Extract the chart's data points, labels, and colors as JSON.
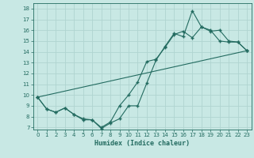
{
  "title": "",
  "xlabel": "Humidex (Indice chaleur)",
  "xlim": [
    -0.5,
    23.5
  ],
  "ylim": [
    6.8,
    18.5
  ],
  "yticks": [
    7,
    8,
    9,
    10,
    11,
    12,
    13,
    14,
    15,
    16,
    17,
    18
  ],
  "xticks": [
    0,
    1,
    2,
    3,
    4,
    5,
    6,
    7,
    8,
    9,
    10,
    11,
    12,
    13,
    14,
    15,
    16,
    17,
    18,
    19,
    20,
    21,
    22,
    23
  ],
  "bg_color": "#c8e8e4",
  "line_color": "#236b60",
  "grid_color": "#b0d4d0",
  "line1_x": [
    0,
    1,
    2,
    3,
    4,
    5,
    6,
    7,
    8,
    9,
    10,
    11,
    12,
    13,
    14,
    15,
    16,
    17,
    18,
    19,
    20,
    21,
    22,
    23
  ],
  "line1_y": [
    9.8,
    8.7,
    8.4,
    8.8,
    8.2,
    7.7,
    7.7,
    6.9,
    7.4,
    7.8,
    9.0,
    9.0,
    11.1,
    13.2,
    14.5,
    15.7,
    15.4,
    17.8,
    16.3,
    16.0,
    15.0,
    14.9,
    14.9,
    14.1
  ],
  "line2_x": [
    0,
    1,
    2,
    3,
    4,
    5,
    6,
    7,
    8,
    9,
    10,
    11,
    12,
    13,
    14,
    15,
    16,
    17,
    18,
    19,
    20,
    21,
    22,
    23
  ],
  "line2_y": [
    9.8,
    8.7,
    8.4,
    8.8,
    8.2,
    7.8,
    7.7,
    7.0,
    7.5,
    9.0,
    10.0,
    11.2,
    13.1,
    13.3,
    14.4,
    15.6,
    15.9,
    15.3,
    16.3,
    15.9,
    16.0,
    15.0,
    14.9,
    14.1
  ],
  "line3_x": [
    0,
    23
  ],
  "line3_y": [
    9.8,
    14.1
  ]
}
